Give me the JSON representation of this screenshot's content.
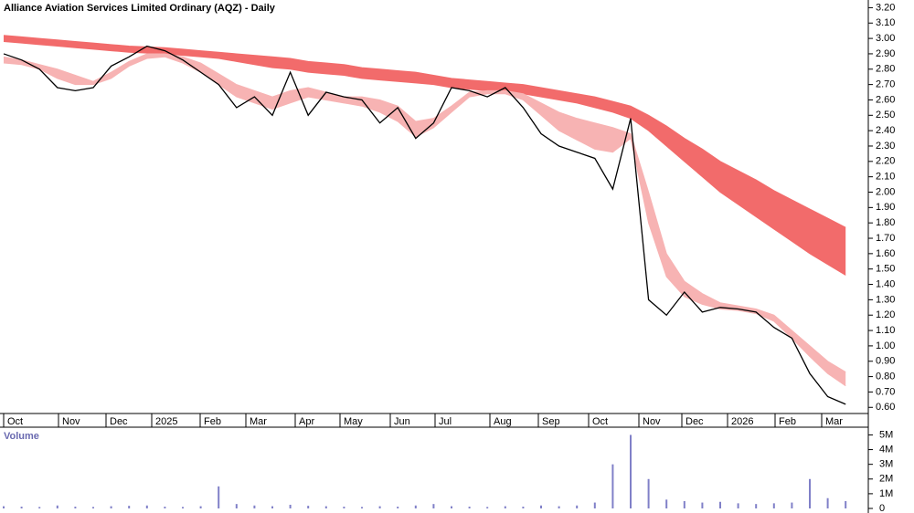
{
  "chart_data": [
    {
      "type": "line",
      "title": "Alliance Aviation Services Limited Ordinary (AQZ) - Daily",
      "month_labels": [
        "Oct",
        "Nov",
        "Dec",
        "2025",
        "Feb",
        "Mar",
        "Apr",
        "May",
        "Jun",
        "Jul",
        "Aug",
        "Sep",
        "Oct",
        "Nov",
        "Dec",
        "2026",
        "Feb",
        "Mar"
      ],
      "ylim": [
        0.56,
        3.25
      ],
      "yticks": [
        {
          "value": 0.6,
          "label": "0.60"
        },
        {
          "value": 0.7,
          "label": "0.70"
        },
        {
          "value": 0.8,
          "label": "0.80"
        },
        {
          "value": 0.9,
          "label": "0.90"
        },
        {
          "value": 1.0,
          "label": "1.00"
        },
        {
          "value": 1.1,
          "label": "1.10"
        },
        {
          "value": 1.2,
          "label": "1.20"
        },
        {
          "value": 1.3,
          "label": "1.30"
        },
        {
          "value": 1.4,
          "label": "1.40"
        },
        {
          "value": 1.5,
          "label": "1.50"
        },
        {
          "value": 1.6,
          "label": "1.60"
        },
        {
          "value": 1.7,
          "label": "1.70"
        },
        {
          "value": 1.8,
          "label": "1.80"
        },
        {
          "value": 1.9,
          "label": "1.90"
        },
        {
          "value": 2.0,
          "label": "2.00"
        },
        {
          "value": 2.1,
          "label": "2.10"
        },
        {
          "value": 2.2,
          "label": "2.20"
        },
        {
          "value": 2.3,
          "label": "2.30"
        },
        {
          "value": 2.4,
          "label": "2.40"
        },
        {
          "value": 2.5,
          "label": "2.50"
        },
        {
          "value": 2.6,
          "label": "2.60"
        },
        {
          "value": 2.7,
          "label": "2.70"
        },
        {
          "value": 2.8,
          "label": "2.80"
        },
        {
          "value": 2.9,
          "label": "2.90"
        },
        {
          "value": 3.0,
          "label": "3.00"
        },
        {
          "value": 3.1,
          "label": "3.10"
        },
        {
          "value": 3.2,
          "label": "3.20"
        }
      ],
      "bands": [
        {
          "color": "#f26b6b",
          "upper": [
            3.02,
            3.01,
            3.0,
            2.99,
            2.98,
            2.97,
            2.96,
            2.95,
            2.945,
            2.94,
            2.93,
            2.92,
            2.91,
            2.9,
            2.89,
            2.88,
            2.87,
            2.85,
            2.84,
            2.83,
            2.81,
            2.8,
            2.79,
            2.78,
            2.76,
            2.74,
            2.73,
            2.72,
            2.71,
            2.7,
            2.68,
            2.66,
            2.64,
            2.62,
            2.59,
            2.56,
            2.5,
            2.43,
            2.35,
            2.28,
            2.2,
            2.14,
            2.08,
            2.01,
            1.95,
            1.89,
            1.83,
            1.77
          ],
          "lower": [
            2.98,
            2.97,
            2.96,
            2.95,
            2.94,
            2.93,
            2.92,
            2.91,
            2.905,
            2.9,
            2.89,
            2.88,
            2.87,
            2.85,
            2.83,
            2.81,
            2.8,
            2.78,
            2.77,
            2.76,
            2.74,
            2.73,
            2.72,
            2.71,
            2.7,
            2.68,
            2.67,
            2.66,
            2.65,
            2.64,
            2.62,
            2.6,
            2.58,
            2.55,
            2.52,
            2.48,
            2.4,
            2.3,
            2.2,
            2.1,
            2.0,
            1.92,
            1.84,
            1.76,
            1.68,
            1.6,
            1.53,
            1.46
          ]
        },
        {
          "color": "#f7b3b3",
          "upper": [
            2.88,
            2.86,
            2.83,
            2.8,
            2.76,
            2.72,
            2.78,
            2.85,
            2.9,
            2.9,
            2.88,
            2.84,
            2.77,
            2.7,
            2.66,
            2.62,
            2.66,
            2.68,
            2.65,
            2.62,
            2.62,
            2.6,
            2.56,
            2.46,
            2.48,
            2.56,
            2.65,
            2.66,
            2.66,
            2.64,
            2.58,
            2.52,
            2.48,
            2.45,
            2.42,
            2.38,
            2.0,
            1.6,
            1.42,
            1.34,
            1.28,
            1.26,
            1.24,
            1.2,
            1.1,
            1.0,
            0.9,
            0.83
          ],
          "lower": [
            2.84,
            2.83,
            2.8,
            2.74,
            2.7,
            2.7,
            2.74,
            2.82,
            2.87,
            2.88,
            2.84,
            2.78,
            2.7,
            2.62,
            2.58,
            2.54,
            2.58,
            2.62,
            2.6,
            2.58,
            2.56,
            2.52,
            2.46,
            2.36,
            2.42,
            2.52,
            2.62,
            2.64,
            2.64,
            2.6,
            2.5,
            2.4,
            2.34,
            2.28,
            2.26,
            2.35,
            1.8,
            1.45,
            1.32,
            1.27,
            1.24,
            1.23,
            1.21,
            1.16,
            1.05,
            0.93,
            0.82,
            0.74
          ]
        }
      ],
      "color": "#000000",
      "values": [
        2.9,
        2.86,
        2.8,
        2.68,
        2.66,
        2.68,
        2.82,
        2.88,
        2.95,
        2.92,
        2.86,
        2.78,
        2.7,
        2.55,
        2.62,
        2.5,
        2.78,
        2.5,
        2.65,
        2.62,
        2.6,
        2.45,
        2.55,
        2.35,
        2.45,
        2.68,
        2.66,
        2.62,
        2.68,
        2.55,
        2.38,
        2.3,
        2.26,
        2.22,
        2.02,
        2.48,
        1.3,
        1.2,
        1.35,
        1.22,
        1.25,
        1.24,
        1.22,
        1.12,
        1.05,
        0.82,
        0.67,
        0.62
      ]
    },
    {
      "type": "bar",
      "title": "Volume",
      "color": "#8080c8",
      "ylim": [
        0,
        5400000
      ],
      "yticks": [
        0,
        {
          "value": 1000000,
          "label": "1M"
        },
        {
          "value": 2000000,
          "label": "2M"
        },
        {
          "value": 3000000,
          "label": "3M"
        },
        {
          "value": 4000000,
          "label": "4M"
        },
        {
          "value": 5000000,
          "label": "5M"
        }
      ],
      "values": [
        150000,
        120000,
        100000,
        200000,
        120000,
        100000,
        150000,
        180000,
        200000,
        120000,
        100000,
        150000,
        1500000,
        300000,
        200000,
        150000,
        250000,
        180000,
        150000,
        120000,
        100000,
        150000,
        120000,
        200000,
        300000,
        150000,
        120000,
        100000,
        150000,
        120000,
        200000,
        150000,
        200000,
        400000,
        3000000,
        5000000,
        2000000,
        600000,
        500000,
        400000,
        450000,
        350000,
        300000,
        350000,
        400000,
        2000000,
        700000,
        500000
      ]
    }
  ]
}
